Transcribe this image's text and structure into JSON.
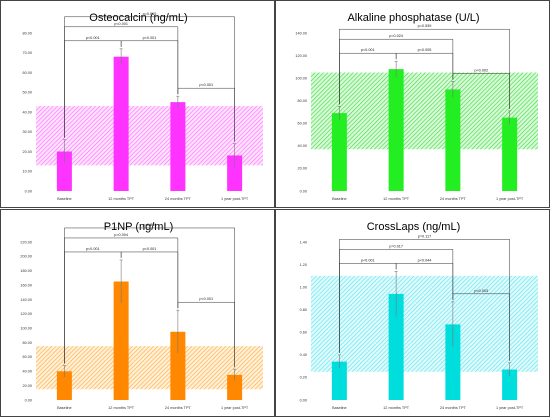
{
  "chart_data": [
    {
      "type": "bar",
      "title": "Osteocalcin (ng/mL)",
      "categories": [
        "Baseline",
        "12 months TPT",
        "24 months TPT",
        "1 year post-TPT"
      ],
      "values": [
        20,
        68,
        45,
        18
      ],
      "errors": [
        6,
        4,
        3,
        6
      ],
      "ylim": [
        0,
        80
      ],
      "yticks": [
        "0.00",
        "10.00",
        "20.00",
        "30.00",
        "40.00",
        "50.00",
        "60.00",
        "70.00",
        "80.00"
      ],
      "reference_range": [
        13,
        43
      ],
      "colors": {
        "bar": "#ff33ff",
        "band": "#ff66ff"
      },
      "comparisons": [
        {
          "from": 0,
          "to": 1,
          "label": "p<0.001"
        },
        {
          "from": 1,
          "to": 2,
          "label": "p<0.001"
        },
        {
          "from": 2,
          "to": 3,
          "label": "p<0.001"
        },
        {
          "from": 0,
          "to": 2,
          "label": "p<0.001"
        },
        {
          "from": 0,
          "to": 3,
          "label": "p=0.615"
        }
      ]
    },
    {
      "type": "bar",
      "title": "Alkaline phosphatase (U/L)",
      "categories": [
        "Baseline",
        "12 months TPT",
        "24 months TPT",
        "1 year post-TPT"
      ],
      "values": [
        69,
        108,
        90,
        65
      ],
      "errors": [
        6,
        7,
        7,
        6
      ],
      "ylim": [
        0,
        140
      ],
      "yticks": [
        "0.00",
        "20.00",
        "40.00",
        "60.00",
        "80.00",
        "100.00",
        "120.00",
        "140.00"
      ],
      "reference_range": [
        37,
        105
      ],
      "colors": {
        "bar": "#22ee22",
        "band": "#33dd33"
      },
      "comparisons": [
        {
          "from": 0,
          "to": 1,
          "label": "p<0.001"
        },
        {
          "from": 1,
          "to": 2,
          "label": "p<0.005"
        },
        {
          "from": 2,
          "to": 3,
          "label": "p<0.002"
        },
        {
          "from": 0,
          "to": 2,
          "label": "p=0.024"
        },
        {
          "from": 0,
          "to": 3,
          "label": "p=0.539"
        }
      ]
    },
    {
      "type": "bar",
      "title": "P1NP (ng/mL)",
      "categories": [
        "Baseline",
        "12 months TPT",
        "24 months TPT",
        "1 year post-TPT"
      ],
      "values": [
        40,
        165,
        95,
        35
      ],
      "errors": [
        8,
        30,
        30,
        8
      ],
      "ylim": [
        0,
        220
      ],
      "yticks": [
        "0.00",
        "20.00",
        "40.00",
        "60.00",
        "80.00",
        "100.00",
        "120.00",
        "140.00",
        "160.00",
        "180.00",
        "200.00",
        "220.00"
      ],
      "reference_range": [
        15,
        75
      ],
      "colors": {
        "bar": "#ff8800",
        "band": "#ffaa33"
      },
      "comparisons": [
        {
          "from": 0,
          "to": 1,
          "label": "p<0.001"
        },
        {
          "from": 1,
          "to": 2,
          "label": "p<0.001"
        },
        {
          "from": 2,
          "to": 3,
          "label": "p<0.001"
        },
        {
          "from": 0,
          "to": 2,
          "label": "p=0.004"
        },
        {
          "from": 0,
          "to": 3,
          "label": "p=0.300"
        }
      ]
    },
    {
      "type": "bar",
      "title": "CrossLaps (ng/mL)",
      "categories": [
        "Baseline",
        "12 months TPT",
        "24 months TPT",
        "1 year post-TPT"
      ],
      "values": [
        0.34,
        0.94,
        0.67,
        0.27
      ],
      "errors": [
        0.06,
        0.2,
        0.2,
        0.06
      ],
      "ylim": [
        0,
        1.4
      ],
      "yticks": [
        "0.00",
        "0.20",
        "0.40",
        "0.60",
        "0.80",
        "1.00",
        "1.20",
        "1.40"
      ],
      "reference_range": [
        0.25,
        1.1
      ],
      "colors": {
        "bar": "#00dddd",
        "band": "#55e5ee"
      },
      "comparisons": [
        {
          "from": 0,
          "to": 1,
          "label": "p<0.001"
        },
        {
          "from": 1,
          "to": 2,
          "label": "p<0.044"
        },
        {
          "from": 2,
          "to": 3,
          "label": "p<0.003"
        },
        {
          "from": 0,
          "to": 2,
          "label": "p=0.017"
        },
        {
          "from": 0,
          "to": 3,
          "label": "p=0.117"
        }
      ]
    }
  ]
}
